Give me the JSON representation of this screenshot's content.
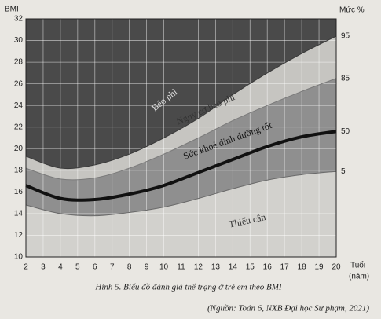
{
  "chart_data": {
    "type": "line",
    "y_label": "BMI",
    "right_label": "Mức %",
    "x_label": "Tuổi",
    "x_unit": "(năm)",
    "caption": "Hình 5. Biểu đồ đánh giá thể trạng ở trẻ em theo BMI",
    "source": "(Nguồn: Toán 6, NXB Đại học Sư phạm, 2021)",
    "annotations": [
      "Béo phì",
      "Nguy cơ béo phì",
      "Sức khoẻ dinh dưỡng tốt",
      "Thiếu cân"
    ],
    "x": [
      2,
      4,
      6,
      8,
      10,
      12,
      14,
      16,
      18,
      20
    ],
    "series": [
      {
        "name": "5",
        "color": "#6a6a6a",
        "values": [
          14.8,
          14.0,
          13.8,
          14.1,
          14.6,
          15.4,
          16.3,
          17.1,
          17.6,
          17.9
        ]
      },
      {
        "name": "50",
        "color": "#111111",
        "values": [
          16.6,
          15.4,
          15.3,
          15.8,
          16.6,
          17.8,
          19.0,
          20.2,
          21.1,
          21.6
        ]
      },
      {
        "name": "85",
        "color": "#7a7a7a",
        "values": [
          18.2,
          17.2,
          17.3,
          18.2,
          19.5,
          21.0,
          22.6,
          24.0,
          25.3,
          26.5
        ]
      },
      {
        "name": "95",
        "color": "#3a3a3a",
        "values": [
          19.3,
          18.2,
          18.5,
          19.5,
          21.0,
          22.8,
          25.0,
          27.0,
          28.8,
          30.4
        ]
      }
    ],
    "fills": [
      "#d2d1cd",
      "#8f8f8f",
      "#8f8f8f",
      "#c6c5c1",
      "#4a4a4a"
    ],
    "xlim": [
      2,
      20
    ],
    "xticks": [
      2,
      3,
      4,
      5,
      6,
      7,
      8,
      9,
      10,
      11,
      12,
      13,
      14,
      15,
      16,
      17,
      18,
      19,
      20
    ],
    "ylim": [
      10,
      32
    ],
    "yticks": [
      10,
      12,
      14,
      16,
      18,
      20,
      22,
      24,
      26,
      28,
      30,
      32
    ],
    "grid": true
  }
}
